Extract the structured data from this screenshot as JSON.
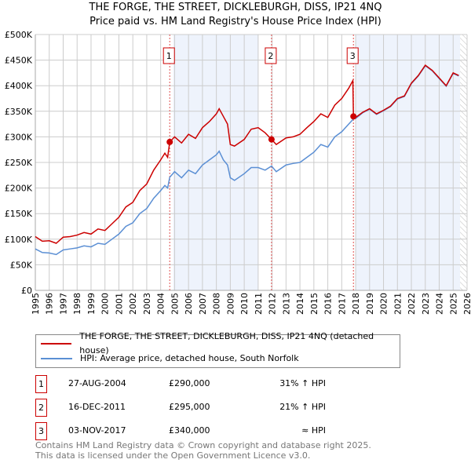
{
  "header": {
    "title": "THE FORGE, THE STREET, DICKLEBURGH, DISS, IP21 4NQ",
    "subtitle": "Price paid vs. HM Land Registry's House Price Index (HPI)"
  },
  "chart_data": {
    "type": "line",
    "xlim": [
      1995,
      2026
    ],
    "ylim": [
      0,
      500000
    ],
    "y_ticks": [
      {
        "v": 0,
        "label": "£0"
      },
      {
        "v": 50000,
        "label": "£50K"
      },
      {
        "v": 100000,
        "label": "£100K"
      },
      {
        "v": 150000,
        "label": "£150K"
      },
      {
        "v": 200000,
        "label": "£200K"
      },
      {
        "v": 250000,
        "label": "£250K"
      },
      {
        "v": 300000,
        "label": "£300K"
      },
      {
        "v": 350000,
        "label": "£350K"
      },
      {
        "v": 400000,
        "label": "£400K"
      },
      {
        "v": 450000,
        "label": "£450K"
      },
      {
        "v": 500000,
        "label": "£500K"
      }
    ],
    "x_ticks": [
      "1995",
      "1996",
      "1997",
      "1998",
      "1999",
      "2000",
      "2001",
      "2002",
      "2003",
      "2004",
      "2005",
      "2006",
      "2007",
      "2008",
      "2009",
      "2010",
      "2011",
      "2012",
      "2013",
      "2014",
      "2015",
      "2016",
      "2017",
      "2018",
      "2019",
      "2020",
      "2021",
      "2022",
      "2023",
      "2024",
      "2025",
      "2026"
    ],
    "grid": true,
    "shaded_ranges": [
      [
        2004.9,
        2011.0
      ],
      [
        2018.0,
        2025.5
      ]
    ],
    "hatched_from": 2025.5,
    "series": [
      {
        "name": "THE FORGE, THE STREET, DICKLEBURGH, DISS, IP21 4NQ (detached house)",
        "color": "#cc0000",
        "points": [
          [
            1995,
            105
          ],
          [
            1995.5,
            96
          ],
          [
            1996,
            97
          ],
          [
            1996.5,
            92
          ],
          [
            1997,
            104
          ],
          [
            1997.5,
            105
          ],
          [
            1998,
            108
          ],
          [
            1998.5,
            113
          ],
          [
            1999,
            110
          ],
          [
            1999.5,
            120
          ],
          [
            2000,
            117
          ],
          [
            2000.5,
            130
          ],
          [
            2001,
            143
          ],
          [
            2001.5,
            163
          ],
          [
            2002,
            172
          ],
          [
            2002.5,
            195
          ],
          [
            2003,
            208
          ],
          [
            2003.5,
            235
          ],
          [
            2004,
            255
          ],
          [
            2004.3,
            268
          ],
          [
            2004.5,
            260
          ],
          [
            2004.65,
            290
          ],
          [
            2005,
            300
          ],
          [
            2005.5,
            288
          ],
          [
            2006,
            305
          ],
          [
            2006.5,
            297
          ],
          [
            2007,
            318
          ],
          [
            2007.5,
            330
          ],
          [
            2008,
            345
          ],
          [
            2008.2,
            355
          ],
          [
            2008.5,
            340
          ],
          [
            2008.8,
            325
          ],
          [
            2009,
            285
          ],
          [
            2009.3,
            282
          ],
          [
            2010,
            295
          ],
          [
            2010.5,
            315
          ],
          [
            2011,
            318
          ],
          [
            2011.5,
            308
          ],
          [
            2011.96,
            295
          ],
          [
            2012.3,
            285
          ],
          [
            2013,
            298
          ],
          [
            2013.5,
            300
          ],
          [
            2014,
            305
          ],
          [
            2014.5,
            318
          ],
          [
            2015,
            330
          ],
          [
            2015.5,
            345
          ],
          [
            2016,
            338
          ],
          [
            2016.5,
            362
          ],
          [
            2017,
            375
          ],
          [
            2017.5,
            395
          ],
          [
            2017.8,
            410
          ],
          [
            2017.84,
            340
          ],
          [
            2018,
            338
          ],
          [
            2018.5,
            348
          ],
          [
            2019,
            355
          ],
          [
            2019.5,
            345
          ],
          [
            2020,
            352
          ],
          [
            2020.5,
            360
          ],
          [
            2021,
            375
          ],
          [
            2021.5,
            380
          ],
          [
            2022,
            405
          ],
          [
            2022.5,
            420
          ],
          [
            2023,
            440
          ],
          [
            2023.5,
            430
          ],
          [
            2024,
            415
          ],
          [
            2024.5,
            400
          ],
          [
            2025,
            425
          ],
          [
            2025.4,
            420
          ]
        ]
      },
      {
        "name": "HPI: Average price, detached house, South Norfolk",
        "color": "#5b8fd4",
        "points": [
          [
            1995,
            81
          ],
          [
            1995.5,
            74
          ],
          [
            1996,
            73
          ],
          [
            1996.5,
            70
          ],
          [
            1997,
            79
          ],
          [
            1997.5,
            81
          ],
          [
            1998,
            83
          ],
          [
            1998.5,
            87
          ],
          [
            1999,
            85
          ],
          [
            1999.5,
            92
          ],
          [
            2000,
            90
          ],
          [
            2000.5,
            100
          ],
          [
            2001,
            110
          ],
          [
            2001.5,
            125
          ],
          [
            2002,
            132
          ],
          [
            2002.5,
            150
          ],
          [
            2003,
            160
          ],
          [
            2003.5,
            180
          ],
          [
            2004,
            195
          ],
          [
            2004.3,
            205
          ],
          [
            2004.5,
            200
          ],
          [
            2004.65,
            221
          ],
          [
            2005,
            232
          ],
          [
            2005.5,
            220
          ],
          [
            2006,
            235
          ],
          [
            2006.5,
            228
          ],
          [
            2007,
            245
          ],
          [
            2007.5,
            255
          ],
          [
            2008,
            265
          ],
          [
            2008.2,
            272
          ],
          [
            2008.5,
            255
          ],
          [
            2008.8,
            245
          ],
          [
            2009,
            220
          ],
          [
            2009.3,
            215
          ],
          [
            2010,
            228
          ],
          [
            2010.5,
            240
          ],
          [
            2011,
            240
          ],
          [
            2011.5,
            235
          ],
          [
            2011.96,
            243
          ],
          [
            2012.3,
            232
          ],
          [
            2013,
            245
          ],
          [
            2013.5,
            248
          ],
          [
            2014,
            250
          ],
          [
            2014.5,
            260
          ],
          [
            2015,
            270
          ],
          [
            2015.5,
            285
          ],
          [
            2016,
            280
          ],
          [
            2016.5,
            300
          ],
          [
            2017,
            310
          ],
          [
            2017.5,
            325
          ],
          [
            2017.84,
            335
          ],
          [
            2018,
            336
          ],
          [
            2018.5,
            347
          ],
          [
            2019,
            354
          ],
          [
            2019.5,
            344
          ],
          [
            2020,
            351
          ],
          [
            2020.5,
            359
          ],
          [
            2021,
            374
          ],
          [
            2021.5,
            379
          ],
          [
            2022,
            404
          ],
          [
            2022.5,
            419
          ],
          [
            2023,
            439
          ],
          [
            2023.5,
            429
          ],
          [
            2024,
            414
          ],
          [
            2024.5,
            399
          ],
          [
            2025,
            424
          ],
          [
            2025.4,
            419
          ]
        ]
      }
    ],
    "value_unit": "thousands GBP",
    "sales": [
      {
        "id": "1",
        "x": 2004.65,
        "value": 290,
        "date": "27-AUG-2004",
        "price": "£290,000",
        "hpi": "31% ↑ HPI"
      },
      {
        "id": "2",
        "x": 2011.96,
        "value": 295,
        "date": "16-DEC-2011",
        "price": "£295,000",
        "hpi": "21% ↑ HPI"
      },
      {
        "id": "3",
        "x": 2017.84,
        "value": 340,
        "date": "03-NOV-2017",
        "price": "£340,000",
        "hpi": "≈ HPI"
      }
    ]
  },
  "legend": {
    "items": [
      "THE FORGE, THE STREET, DICKLEBURGH, DISS, IP21 4NQ (detached house)",
      "HPI: Average price, detached house, South Norfolk"
    ]
  },
  "footer": {
    "line1": "Contains HM Land Registry data © Crown copyright and database right 2025.",
    "line2": "This data is licensed under the Open Government Licence v3.0."
  }
}
